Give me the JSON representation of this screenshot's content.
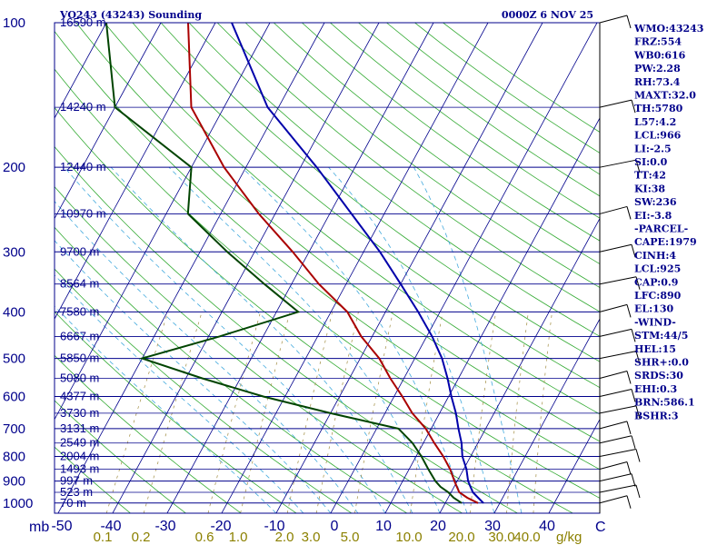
{
  "title_left": "VO243 (43243) Sounding",
  "title_right": "0000Z  6 NOV 25",
  "chart_data": {
    "type": "skew-t",
    "pressure_levels": [
      100,
      200,
      300,
      400,
      500,
      600,
      700,
      800,
      900,
      1000
    ],
    "pressure_unit": "mb",
    "temp_ticks": [
      -50,
      -40,
      -30,
      -20,
      -10,
      0,
      10,
      20,
      30,
      40
    ],
    "temp_unit": "C",
    "mixing_ratio_labels": [
      "0.1",
      "0.2",
      "0.6",
      "1.0",
      "2.0",
      "3.0",
      "5.0",
      "10.0",
      "20.0",
      "30.0",
      "40.0"
    ],
    "mixing_unit": "g/kg",
    "heights": [
      {
        "label": "16590 m",
        "p": 100
      },
      {
        "label": "14240 m",
        "p": 150
      },
      {
        "label": "12440 m",
        "p": 200
      },
      {
        "label": "10970 m",
        "p": 250
      },
      {
        "label": "9700 m",
        "p": 300
      },
      {
        "label": "8564 m",
        "p": 350
      },
      {
        "label": "7580 m",
        "p": 400
      },
      {
        "label": "6667 m",
        "p": 450
      },
      {
        "label": "5850 m",
        "p": 500
      },
      {
        "label": "5080 m",
        "p": 550
      },
      {
        "label": "4377 m",
        "p": 600
      },
      {
        "label": "3730 m",
        "p": 650
      },
      {
        "label": "3131 m",
        "p": 700
      },
      {
        "label": "2549 m",
        "p": 750
      },
      {
        "label": "2004 m",
        "p": 800
      },
      {
        "label": "1493 m",
        "p": 850
      },
      {
        "label": "997 m",
        "p": 900
      },
      {
        "label": "523 m",
        "p": 950
      },
      {
        "label": "70 m",
        "p": 1000
      }
    ],
    "temperature": [
      [
        1000,
        26
      ],
      [
        975,
        23.5
      ],
      [
        950,
        21.5
      ],
      [
        925,
        20.5
      ],
      [
        900,
        19.5
      ],
      [
        850,
        17.5
      ],
      [
        800,
        15
      ],
      [
        750,
        12
      ],
      [
        700,
        9
      ],
      [
        650,
        5
      ],
      [
        600,
        1.5
      ],
      [
        550,
        -2.5
      ],
      [
        500,
        -6.5
      ],
      [
        450,
        -12
      ],
      [
        400,
        -17
      ],
      [
        350,
        -25
      ],
      [
        300,
        -33
      ],
      [
        250,
        -43
      ],
      [
        200,
        -54
      ],
      [
        150,
        -66
      ],
      [
        100,
        -75
      ]
    ],
    "dewpoint": [
      [
        1000,
        23
      ],
      [
        975,
        21
      ],
      [
        950,
        19.5
      ],
      [
        925,
        17.5
      ],
      [
        900,
        16
      ],
      [
        850,
        13.5
      ],
      [
        800,
        11
      ],
      [
        750,
        8
      ],
      [
        700,
        4
      ],
      [
        650,
        -10
      ],
      [
        600,
        -24
      ],
      [
        550,
        -37
      ],
      [
        500,
        -50
      ],
      [
        450,
        -38
      ],
      [
        400,
        -26
      ],
      [
        350,
        -35
      ],
      [
        300,
        -45
      ],
      [
        250,
        -56
      ],
      [
        200,
        -60
      ],
      [
        150,
        -80
      ],
      [
        100,
        -90
      ]
    ],
    "parcel": [
      [
        1000,
        27
      ],
      [
        975,
        25.5
      ],
      [
        950,
        24
      ],
      [
        925,
        23
      ],
      [
        900,
        22
      ],
      [
        850,
        20.5
      ],
      [
        800,
        18.5
      ],
      [
        750,
        17
      ],
      [
        700,
        15
      ],
      [
        650,
        13
      ],
      [
        600,
        10.5
      ],
      [
        550,
        8
      ],
      [
        500,
        5
      ],
      [
        450,
        1
      ],
      [
        400,
        -4
      ],
      [
        350,
        -10
      ],
      [
        300,
        -17
      ],
      [
        250,
        -26
      ],
      [
        200,
        -37
      ],
      [
        150,
        -52
      ],
      [
        100,
        -67
      ]
    ]
  },
  "indices": [
    "WMO:43243",
    "FRZ:554",
    "WB0:616",
    "PW:2.28",
    "RH:73.4",
    "MAXT:32.0",
    "TH:5780",
    "L57:4.2",
    "LCL:966",
    "LI:-2.5",
    "SI:0.0",
    "TT:42",
    "KI:38",
    "SW:236",
    "EI:-3.8",
    "-PARCEL-",
    "CAPE:1979",
    "CINH:4",
    "LCL:925",
    "CAP:0.9",
    "LFC:890",
    "EL:130",
    "-WIND-",
    "STM:44/5",
    "HEL:15",
    "SHR+:0.0",
    "SRDS:30",
    "EHI:0.3",
    "BRN:586.1",
    "BSHR:3"
  ]
}
